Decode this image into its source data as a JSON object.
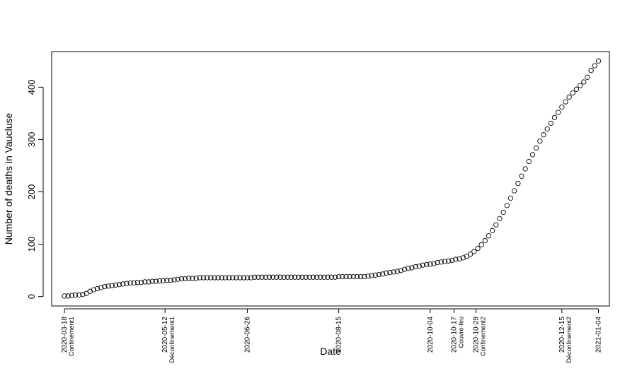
{
  "chart_data": {
    "type": "scatter",
    "title": "",
    "xlabel": "Date",
    "ylabel": "Number of deaths in Vaucluse",
    "x_type": "date",
    "xlim": [
      "2020-03-11",
      "2021-01-10"
    ],
    "ylim": [
      -18,
      468
    ],
    "y_ticks": [
      0,
      100,
      200,
      300,
      400
    ],
    "x_ticks": [
      {
        "date": "2020-03-18",
        "label": "2020-03-18",
        "event": "Confinement1"
      },
      {
        "date": "2020-05-12",
        "label": "2020-05-12",
        "event": "Déconfinement1"
      },
      {
        "date": "2020-06-26",
        "label": "2020-06-26",
        "event": ""
      },
      {
        "date": "2020-08-15",
        "label": "2020-08-15",
        "event": ""
      },
      {
        "date": "2020-10-04",
        "label": "2020-10-04",
        "event": ""
      },
      {
        "date": "2020-10-17",
        "label": "2020-10-17",
        "event": "Couvre-feu"
      },
      {
        "date": "2020-10-29",
        "label": "2020-10-29",
        "event": "Confinement2"
      },
      {
        "date": "2020-12-15",
        "label": "2020-12-15",
        "event": "Déconfinement2"
      },
      {
        "date": "2021-01-04",
        "label": "2021-01-04",
        "event": ""
      }
    ],
    "marker": "open-circle",
    "grid": false,
    "series": [
      {
        "name": "",
        "points": [
          [
            "2020-03-18",
            1
          ],
          [
            "2020-03-20",
            1
          ],
          [
            "2020-03-22",
            2
          ],
          [
            "2020-03-24",
            3
          ],
          [
            "2020-03-26",
            3
          ],
          [
            "2020-03-28",
            4
          ],
          [
            "2020-03-30",
            6
          ],
          [
            "2020-04-01",
            10
          ],
          [
            "2020-04-03",
            13
          ],
          [
            "2020-04-05",
            15
          ],
          [
            "2020-04-07",
            17
          ],
          [
            "2020-04-09",
            19
          ],
          [
            "2020-04-11",
            20
          ],
          [
            "2020-04-13",
            21
          ],
          [
            "2020-04-15",
            22
          ],
          [
            "2020-04-17",
            23
          ],
          [
            "2020-04-19",
            24
          ],
          [
            "2020-04-21",
            25
          ],
          [
            "2020-04-23",
            26
          ],
          [
            "2020-04-25",
            26
          ],
          [
            "2020-04-27",
            27
          ],
          [
            "2020-04-29",
            27
          ],
          [
            "2020-05-01",
            28
          ],
          [
            "2020-05-03",
            28
          ],
          [
            "2020-05-05",
            29
          ],
          [
            "2020-05-07",
            29
          ],
          [
            "2020-05-09",
            30
          ],
          [
            "2020-05-11",
            30
          ],
          [
            "2020-05-13",
            31
          ],
          [
            "2020-05-15",
            31
          ],
          [
            "2020-05-17",
            32
          ],
          [
            "2020-05-19",
            33
          ],
          [
            "2020-05-21",
            34
          ],
          [
            "2020-05-23",
            34
          ],
          [
            "2020-05-25",
            35
          ],
          [
            "2020-05-27",
            35
          ],
          [
            "2020-05-29",
            35
          ],
          [
            "2020-05-31",
            36
          ],
          [
            "2020-06-02",
            36
          ],
          [
            "2020-06-04",
            36
          ],
          [
            "2020-06-06",
            36
          ],
          [
            "2020-06-08",
            36
          ],
          [
            "2020-06-10",
            36
          ],
          [
            "2020-06-12",
            36
          ],
          [
            "2020-06-14",
            36
          ],
          [
            "2020-06-16",
            36
          ],
          [
            "2020-06-18",
            36
          ],
          [
            "2020-06-20",
            36
          ],
          [
            "2020-06-22",
            36
          ],
          [
            "2020-06-24",
            36
          ],
          [
            "2020-06-26",
            36
          ],
          [
            "2020-06-28",
            36
          ],
          [
            "2020-06-30",
            37
          ],
          [
            "2020-07-02",
            37
          ],
          [
            "2020-07-04",
            37
          ],
          [
            "2020-07-06",
            37
          ],
          [
            "2020-07-08",
            37
          ],
          [
            "2020-07-10",
            37
          ],
          [
            "2020-07-12",
            37
          ],
          [
            "2020-07-14",
            37
          ],
          [
            "2020-07-16",
            37
          ],
          [
            "2020-07-18",
            37
          ],
          [
            "2020-07-20",
            37
          ],
          [
            "2020-07-22",
            37
          ],
          [
            "2020-07-24",
            37
          ],
          [
            "2020-07-26",
            37
          ],
          [
            "2020-07-28",
            37
          ],
          [
            "2020-07-30",
            37
          ],
          [
            "2020-08-01",
            37
          ],
          [
            "2020-08-03",
            37
          ],
          [
            "2020-08-05",
            37
          ],
          [
            "2020-08-07",
            37
          ],
          [
            "2020-08-09",
            37
          ],
          [
            "2020-08-11",
            37
          ],
          [
            "2020-08-13",
            37
          ],
          [
            "2020-08-15",
            38
          ],
          [
            "2020-08-17",
            38
          ],
          [
            "2020-08-19",
            38
          ],
          [
            "2020-08-21",
            38
          ],
          [
            "2020-08-23",
            38
          ],
          [
            "2020-08-25",
            38
          ],
          [
            "2020-08-27",
            38
          ],
          [
            "2020-08-29",
            38
          ],
          [
            "2020-08-31",
            39
          ],
          [
            "2020-09-02",
            40
          ],
          [
            "2020-09-04",
            41
          ],
          [
            "2020-09-06",
            42
          ],
          [
            "2020-09-08",
            43
          ],
          [
            "2020-09-10",
            45
          ],
          [
            "2020-09-12",
            46
          ],
          [
            "2020-09-14",
            47
          ],
          [
            "2020-09-16",
            48
          ],
          [
            "2020-09-18",
            50
          ],
          [
            "2020-09-20",
            52
          ],
          [
            "2020-09-22",
            54
          ],
          [
            "2020-09-24",
            55
          ],
          [
            "2020-09-26",
            57
          ],
          [
            "2020-09-28",
            58
          ],
          [
            "2020-09-30",
            60
          ],
          [
            "2020-10-02",
            61
          ],
          [
            "2020-10-04",
            62
          ],
          [
            "2020-10-06",
            63
          ],
          [
            "2020-10-08",
            65
          ],
          [
            "2020-10-10",
            66
          ],
          [
            "2020-10-12",
            67
          ],
          [
            "2020-10-14",
            68
          ],
          [
            "2020-10-16",
            69
          ],
          [
            "2020-10-18",
            71
          ],
          [
            "2020-10-20",
            72
          ],
          [
            "2020-10-22",
            74
          ],
          [
            "2020-10-24",
            77
          ],
          [
            "2020-10-26",
            81
          ],
          [
            "2020-10-28",
            86
          ],
          [
            "2020-10-30",
            92
          ],
          [
            "2020-11-01",
            99
          ],
          [
            "2020-11-03",
            107
          ],
          [
            "2020-11-05",
            116
          ],
          [
            "2020-11-07",
            126
          ],
          [
            "2020-11-09",
            137
          ],
          [
            "2020-11-11",
            149
          ],
          [
            "2020-11-13",
            161
          ],
          [
            "2020-11-15",
            174
          ],
          [
            "2020-11-17",
            188
          ],
          [
            "2020-11-19",
            202
          ],
          [
            "2020-11-21",
            216
          ],
          [
            "2020-11-23",
            230
          ],
          [
            "2020-11-25",
            244
          ],
          [
            "2020-11-27",
            258
          ],
          [
            "2020-11-29",
            271
          ],
          [
            "2020-12-01",
            284
          ],
          [
            "2020-12-03",
            297
          ],
          [
            "2020-12-05",
            309
          ],
          [
            "2020-12-07",
            320
          ],
          [
            "2020-12-09",
            331
          ],
          [
            "2020-12-11",
            342
          ],
          [
            "2020-12-13",
            352
          ],
          [
            "2020-12-15",
            362
          ],
          [
            "2020-12-17",
            372
          ],
          [
            "2020-12-19",
            381
          ],
          [
            "2020-12-21",
            389
          ],
          [
            "2020-12-23",
            396
          ],
          [
            "2020-12-25",
            403
          ],
          [
            "2020-12-27",
            410
          ],
          [
            "2020-12-29",
            419
          ],
          [
            "2020-12-31",
            432
          ],
          [
            "2021-01-02",
            441
          ],
          [
            "2021-01-04",
            450
          ]
        ]
      }
    ]
  }
}
